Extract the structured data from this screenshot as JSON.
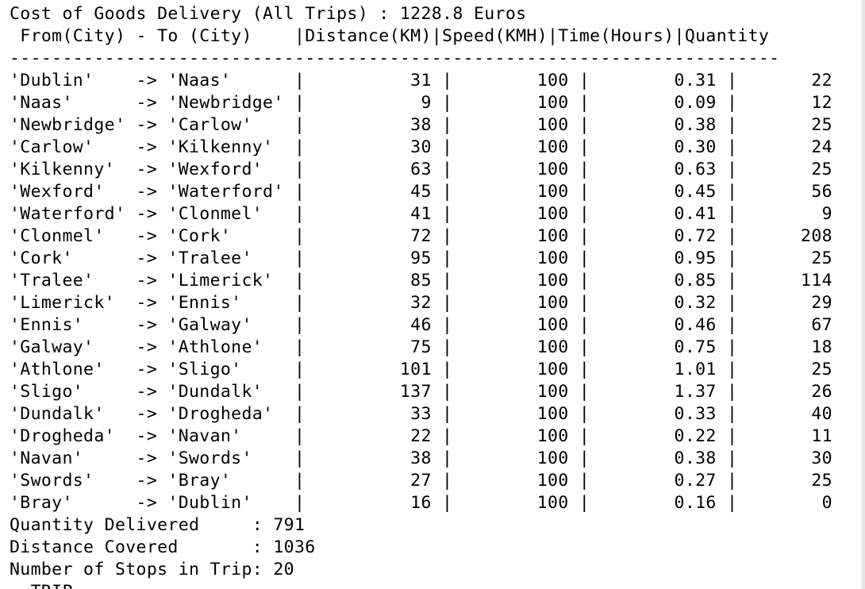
{
  "terminal": {
    "title_line": "Cost of Goods Delivery (All Trips) : 1228.8 Euros",
    "header_line": " From(City) - To (City)    |Distance(KM)|Speed(KMH)|Time(Hours)|Quantity",
    "separator_line": "-------------------------------------------------------------------------",
    "rows": [
      "'Dublin'    -> 'Naas'      |          31 |        100 |        0.31 |       22",
      "'Naas'      -> 'Newbridge' |           9 |        100 |        0.09 |       12",
      "'Newbridge' -> 'Carlow'    |          38 |        100 |        0.38 |       25",
      "'Carlow'    -> 'Kilkenny'  |          30 |        100 |        0.30 |       24",
      "'Kilkenny'  -> 'Wexford'   |          63 |        100 |        0.63 |       25",
      "'Wexford'   -> 'Waterford' |          45 |        100 |        0.45 |       56",
      "'Waterford' -> 'Clonmel'   |          41 |        100 |        0.41 |        9",
      "'Clonmel'   -> 'Cork'      |          72 |        100 |        0.72 |      208",
      "'Cork'      -> 'Tralee'    |          95 |        100 |        0.95 |       25",
      "'Tralee'    -> 'Limerick'  |          85 |        100 |        0.85 |      114",
      "'Limerick'  -> 'Ennis'     |          32 |        100 |        0.32 |       29",
      "'Ennis'     -> 'Galway'    |          46 |        100 |        0.46 |       67",
      "'Galway'    -> 'Athlone'   |          75 |        100 |        0.75 |       18",
      "'Athlone'   -> 'Sligo'     |         101 |        100 |        1.01 |       25",
      "'Sligo'     -> 'Dundalk'   |         137 |        100 |        1.37 |       26",
      "'Dundalk'   -> 'Drogheda'  |          33 |        100 |        0.33 |       40",
      "'Drogheda'  -> 'Navan'     |          22 |        100 |        0.22 |       11",
      "'Navan'     -> 'Swords'    |          38 |        100 |        0.38 |       30",
      "'Swords'    -> 'Bray'      |          27 |        100 |        0.27 |       25",
      "'Bray'      -> 'Dublin'    |          16 |        100 |        0.16 |        0"
    ],
    "summary": [
      "Quantity Delivered     : 791",
      "Distance Covered       : 1036",
      "Number of Stops in Trip: 20"
    ],
    "cut_line": "  TRIP"
  }
}
